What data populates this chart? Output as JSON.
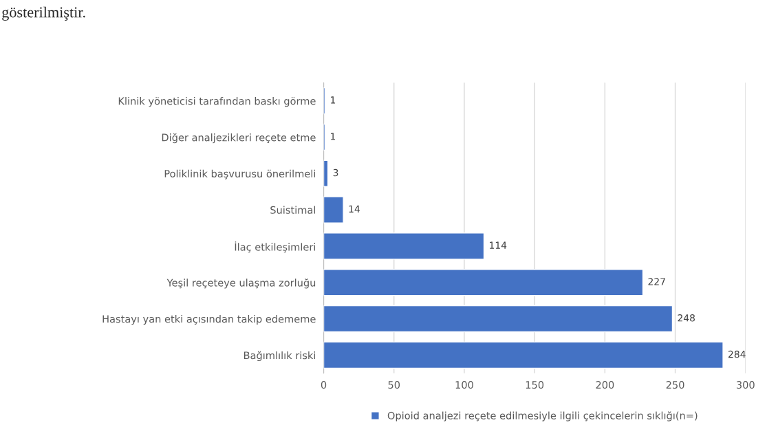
{
  "chart_data": {
    "type": "bar",
    "orientation": "horizontal",
    "categories": [
      "Klinik yöneticisi tarafından baskı görme",
      "Diğer analjezikleri reçete etme",
      "Poliklinik başvurusu önerilmeli",
      "Suistimal",
      "İlaç etkileşimleri",
      "Yeşil reçeteye ulaşma zorluğu",
      "Hastayı yan etki açısından takip edememe",
      "Bağımlılık riski"
    ],
    "series": [
      {
        "name": "Opioid analjezi reçete edilmesiyle ilgili çekincelerin sıklığı(n=)",
        "color": "#4472c4",
        "values": [
          1,
          1,
          3,
          14,
          114,
          227,
          248,
          284
        ]
      }
    ],
    "xlim": [
      0,
      300
    ],
    "xticks": [
      0,
      50,
      100,
      150,
      200,
      250,
      300
    ],
    "grid": "x",
    "legend": "bottom",
    "data_labels": true,
    "annotations": [
      "gösterilmiştir."
    ]
  }
}
